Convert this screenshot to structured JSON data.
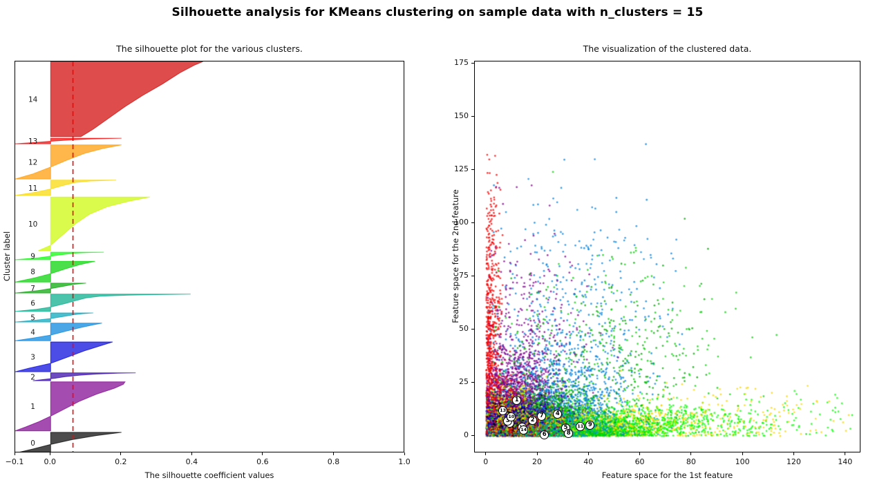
{
  "figure_title": "Silhouette analysis for KMeans clustering on sample data with n_clusters = 15",
  "palette_base": [
    "#000000",
    "#7D008E",
    "#2D00A4",
    "#0000DD",
    "#0082DD",
    "#00A4BB",
    "#00AA88",
    "#00A400",
    "#00D200",
    "#00FF00",
    "#CCF900",
    "#F9D700",
    "#FF9900",
    "#F40000",
    "#D20000"
  ],
  "avg_line_color": "#ff0000",
  "chart_data": [
    {
      "type": "area",
      "title": "The silhouette plot for the various clusters.",
      "xlabel": "The silhouette coefficient values",
      "ylabel": "Cluster label",
      "xlim": [
        -0.1,
        1.0
      ],
      "xticks": [
        {
          "value": -0.1,
          "label": "−0.1"
        },
        {
          "value": 0.0,
          "label": "0.0"
        },
        {
          "value": 0.2,
          "label": "0.2"
        },
        {
          "value": 0.4,
          "label": "0.4"
        },
        {
          "value": 0.6,
          "label": "0.6"
        },
        {
          "value": 0.8,
          "label": "0.8"
        },
        {
          "value": 1.0,
          "label": "1.0"
        }
      ],
      "yticks": [],
      "average_silhouette": 0.063,
      "cluster_label_x": -0.05,
      "fill_alpha": 0.7,
      "clusters": [
        {
          "label": "14",
          "color_index": 14,
          "band": [
            0.0,
            0.192
          ],
          "profile": [
            [
              0,
              0.085
            ],
            [
              0.1,
              0.12
            ],
            [
              0.25,
              0.165
            ],
            [
              0.4,
              0.21
            ],
            [
              0.55,
              0.26
            ],
            [
              0.7,
              0.315
            ],
            [
              0.85,
              0.365
            ],
            [
              0.95,
              0.405
            ],
            [
              1,
              0.43
            ]
          ]
        },
        {
          "label": "13",
          "color_index": 13,
          "band": [
            0.196,
            0.21
          ],
          "profile": [
            [
              0,
              -0.1
            ],
            [
              0.25,
              -0.04
            ],
            [
              0.45,
              0.0
            ],
            [
              0.68,
              0.05
            ],
            [
              0.88,
              0.115
            ],
            [
              1,
              0.2
            ]
          ]
        },
        {
          "label": "12",
          "color_index": 12,
          "band": [
            0.213,
            0.3
          ],
          "profile": [
            [
              0,
              -0.1
            ],
            [
              0.15,
              -0.05
            ],
            [
              0.35,
              0.0
            ],
            [
              0.55,
              0.045
            ],
            [
              0.75,
              0.095
            ],
            [
              0.9,
              0.15
            ],
            [
              1,
              0.2
            ]
          ]
        },
        {
          "label": "11",
          "color_index": 11,
          "band": [
            0.303,
            0.342
          ],
          "profile": [
            [
              0,
              -0.1
            ],
            [
              0.2,
              -0.045
            ],
            [
              0.42,
              0.0
            ],
            [
              0.65,
              0.035
            ],
            [
              0.85,
              0.07
            ],
            [
              0.94,
              0.11
            ],
            [
              1,
              0.185
            ]
          ]
        },
        {
          "label": "10",
          "color_index": 10,
          "band": [
            0.346,
            0.483
          ],
          "profile": [
            [
              0,
              -0.035
            ],
            [
              0.1,
              0.0
            ],
            [
              0.3,
              0.035
            ],
            [
              0.5,
              0.07
            ],
            [
              0.68,
              0.11
            ],
            [
              0.82,
              0.16
            ],
            [
              0.92,
              0.22
            ],
            [
              1,
              0.28
            ]
          ]
        },
        {
          "label": "9",
          "color_index": 9,
          "band": [
            0.487,
            0.506
          ],
          "profile": [
            [
              0,
              -0.1
            ],
            [
              0.25,
              -0.035
            ],
            [
              0.48,
              0.0
            ],
            [
              0.7,
              0.035
            ],
            [
              0.88,
              0.07
            ],
            [
              0.95,
              0.1
            ],
            [
              1,
              0.15
            ]
          ]
        },
        {
          "label": "8",
          "color_index": 8,
          "band": [
            0.51,
            0.563
          ],
          "profile": [
            [
              0,
              -0.1
            ],
            [
              0.2,
              -0.045
            ],
            [
              0.4,
              0.0
            ],
            [
              0.65,
              0.045
            ],
            [
              0.85,
              0.085
            ],
            [
              1,
              0.125
            ]
          ]
        },
        {
          "label": "7",
          "color_index": 7,
          "band": [
            0.566,
            0.591
          ],
          "profile": [
            [
              0,
              -0.1
            ],
            [
              0.25,
              -0.035
            ],
            [
              0.45,
              0.0
            ],
            [
              0.68,
              0.035
            ],
            [
              0.88,
              0.065
            ],
            [
              1,
              0.1
            ]
          ]
        },
        {
          "label": "6",
          "color_index": 6,
          "band": [
            0.594,
            0.638
          ],
          "profile": [
            [
              0,
              -0.1
            ],
            [
              0.12,
              -0.04
            ],
            [
              0.25,
              0.0
            ],
            [
              0.45,
              0.04
            ],
            [
              0.62,
              0.07
            ],
            [
              0.78,
              0.1
            ],
            [
              0.88,
              0.14
            ],
            [
              0.94,
              0.22
            ],
            [
              0.97,
              0.3
            ],
            [
              1,
              0.395
            ]
          ]
        },
        {
          "label": "5",
          "color_index": 5,
          "band": [
            0.642,
            0.665
          ],
          "profile": [
            [
              0,
              -0.1
            ],
            [
              0.2,
              -0.04
            ],
            [
              0.38,
              0.0
            ],
            [
              0.6,
              0.035
            ],
            [
              0.8,
              0.065
            ],
            [
              0.92,
              0.09
            ],
            [
              1,
              0.12
            ]
          ]
        },
        {
          "label": "4",
          "color_index": 4,
          "band": [
            0.668,
            0.713
          ],
          "profile": [
            [
              0,
              -0.1
            ],
            [
              0.15,
              -0.05
            ],
            [
              0.32,
              0.0
            ],
            [
              0.55,
              0.045
            ],
            [
              0.75,
              0.085
            ],
            [
              0.9,
              0.12
            ],
            [
              1,
              0.145
            ]
          ]
        },
        {
          "label": "3",
          "color_index": 3,
          "band": [
            0.716,
            0.792
          ],
          "profile": [
            [
              0,
              -0.1
            ],
            [
              0.12,
              -0.06
            ],
            [
              0.28,
              0.0
            ],
            [
              0.5,
              0.05
            ],
            [
              0.7,
              0.095
            ],
            [
              0.87,
              0.14
            ],
            [
              1,
              0.175
            ]
          ]
        },
        {
          "label": "2",
          "color_index": 2,
          "band": [
            0.795,
            0.815
          ],
          "profile": [
            [
              0,
              -0.05
            ],
            [
              0.2,
              -0.01
            ],
            [
              0.3,
              0.01
            ],
            [
              0.5,
              0.04
            ],
            [
              0.7,
              0.08
            ],
            [
              0.85,
              0.13
            ],
            [
              0.95,
              0.19
            ],
            [
              1,
              0.24
            ]
          ]
        },
        {
          "label": "1",
          "color_index": 1,
          "band": [
            0.818,
            0.943
          ],
          "profile": [
            [
              0,
              -0.1
            ],
            [
              0.08,
              -0.07
            ],
            [
              0.18,
              -0.035
            ],
            [
              0.3,
              0.0
            ],
            [
              0.45,
              0.04
            ],
            [
              0.6,
              0.08
            ],
            [
              0.75,
              0.13
            ],
            [
              0.87,
              0.18
            ],
            [
              0.95,
              0.205
            ],
            [
              1,
              0.21
            ]
          ]
        },
        {
          "label": "0",
          "color_index": 0,
          "band": [
            0.947,
            1.0
          ],
          "profile": [
            [
              0,
              -0.1
            ],
            [
              0.2,
              -0.05
            ],
            [
              0.42,
              0.0
            ],
            [
              0.65,
              0.06
            ],
            [
              0.85,
              0.13
            ],
            [
              1,
              0.2
            ]
          ]
        }
      ]
    },
    {
      "type": "scatter",
      "title": "The visualization of the clustered data.",
      "xlabel": "Feature space for the 1st feature",
      "ylabel": "Feature space for the 2nd feature",
      "xlim": [
        -4.5,
        146
      ],
      "ylim": [
        -8,
        176
      ],
      "xticks": [
        0,
        20,
        40,
        60,
        80,
        100,
        120,
        140
      ],
      "yticks": [
        0,
        25,
        50,
        75,
        100,
        125,
        150,
        175
      ],
      "marker_alpha": 0.75,
      "marker_radius": 1.4,
      "seed": 42,
      "centers": [
        {
          "label": "0",
          "x": 9.4,
          "y": 5.8
        },
        {
          "label": "1",
          "x": 12.1,
          "y": 16.6
        },
        {
          "label": "2",
          "x": 18.3,
          "y": 7.1
        },
        {
          "label": "3",
          "x": 8.6,
          "y": 6.8
        },
        {
          "label": "4",
          "x": 28.0,
          "y": 10.1
        },
        {
          "label": "5",
          "x": 31.2,
          "y": 3.6
        },
        {
          "label": "6",
          "x": 22.9,
          "y": 0.4
        },
        {
          "label": "7",
          "x": 21.8,
          "y": 9.1
        },
        {
          "label": "8",
          "x": 32.3,
          "y": 1.0
        },
        {
          "label": "9",
          "x": 40.7,
          "y": 4.9
        },
        {
          "label": "10",
          "x": 10.0,
          "y": 8.8
        },
        {
          "label": "11",
          "x": 36.9,
          "y": 4.2
        },
        {
          "label": "12",
          "x": 14.3,
          "y": 3.9
        },
        {
          "label": "13",
          "x": 6.7,
          "y": 11.7
        },
        {
          "label": "14",
          "x": 14.8,
          "y": 2.6
        }
      ],
      "blobs": [
        [
          13,
          700,
          1.5,
          40.0,
          2.0,
          38.0
        ],
        [
          13,
          500,
          7.0,
          12.0,
          4.5,
          8.0
        ],
        [
          1,
          1200,
          12.0,
          17.0,
          8.0,
          13.0
        ],
        [
          1,
          300,
          16.0,
          48.0,
          12.0,
          26.0
        ],
        [
          3,
          900,
          8.6,
          6.8,
          6.0,
          6.0
        ],
        [
          4,
          1100,
          28.0,
          12.0,
          13.0,
          16.0
        ],
        [
          4,
          400,
          34.0,
          58.0,
          18.0,
          28.0
        ],
        [
          2,
          900,
          18.3,
          7.1,
          8.0,
          6.0
        ],
        [
          10,
          900,
          10.0,
          8.8,
          6.5,
          7.0
        ],
        [
          12,
          800,
          14.3,
          3.9,
          7.0,
          4.0
        ],
        [
          14,
          900,
          14.8,
          2.6,
          8.0,
          3.0
        ],
        [
          0,
          600,
          9.4,
          5.8,
          5.0,
          5.0
        ],
        [
          6,
          900,
          22.9,
          1.0,
          10.0,
          2.5
        ],
        [
          5,
          800,
          31.2,
          3.6,
          12.0,
          4.0
        ],
        [
          8,
          1000,
          32.3,
          1.2,
          14.0,
          2.5
        ],
        [
          8,
          250,
          48.0,
          38.0,
          24.0,
          24.0
        ],
        [
          7,
          1000,
          21.8,
          9.1,
          10.0,
          8.0
        ],
        [
          7,
          300,
          45.0,
          33.0,
          20.0,
          20.0
        ],
        [
          9,
          1100,
          40.7,
          5.0,
          24.0,
          5.0
        ],
        [
          9,
          400,
          80.0,
          6.0,
          30.0,
          6.0
        ],
        [
          11,
          900,
          36.9,
          4.2,
          18.0,
          4.0
        ],
        [
          11,
          350,
          72.0,
          8.0,
          30.0,
          8.0
        ]
      ]
    }
  ]
}
